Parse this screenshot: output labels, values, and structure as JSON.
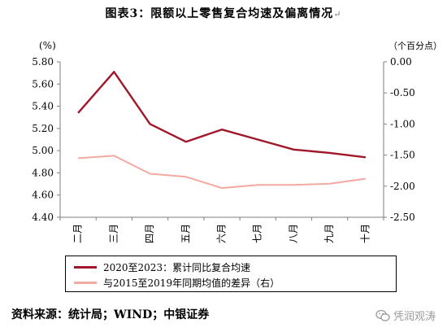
{
  "title": "图表3：限额以上零售复合均速及偏离情况",
  "title_mark": "↵",
  "source": "资料来源：统计局；WIND；中银证券",
  "watermark": {
    "text": "凭润观涛",
    "icon": "wechat-icon"
  },
  "chart_data": {
    "type": "line",
    "categories": [
      "二月",
      "三月",
      "四月",
      "五月",
      "六月",
      "七月",
      "八月",
      "九月",
      "十月"
    ],
    "y_left": {
      "unit_label": "(%)",
      "ylim": [
        4.4,
        5.8
      ],
      "ticks": [
        "5.80",
        "5.60",
        "5.40",
        "5.20",
        "5.00",
        "4.80",
        "4.60",
        "4.40"
      ]
    },
    "y_right": {
      "unit_label": "（个百分点）",
      "ylim": [
        -2.5,
        0.0
      ],
      "ticks": [
        "0.00",
        "-0.50",
        "-1.00",
        "-1.50",
        "-2.00",
        "-2.50"
      ]
    },
    "series": [
      {
        "name": "2020至2023：累计同比复合均速",
        "axis": "left",
        "color": "#a0172a",
        "values": [
          5.34,
          5.71,
          5.24,
          5.08,
          5.19,
          5.1,
          5.01,
          4.98,
          4.94
        ]
      },
      {
        "name": "与2015至2019年同期均值的差异（右）",
        "axis": "right",
        "color": "#f2a9a1",
        "values": [
          -1.55,
          -1.51,
          -1.8,
          -1.85,
          -2.03,
          -1.98,
          -1.98,
          -1.96,
          -1.88
        ]
      }
    ],
    "grid": false,
    "legend_position": "bottom"
  }
}
